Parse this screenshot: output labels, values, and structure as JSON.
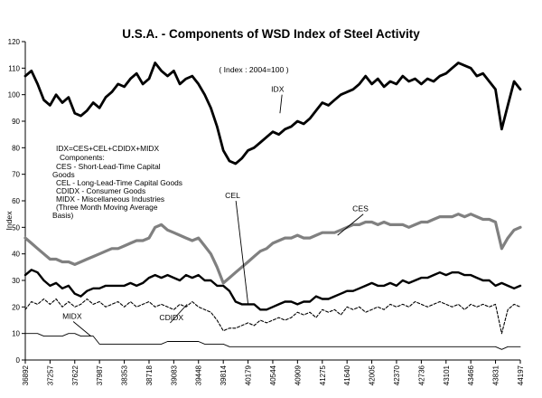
{
  "chart_data": {
    "type": "line",
    "title": "U.S.A. - Components of WSD Index of Steel Activity",
    "subtitle": "( Index : 2004=100 )",
    "ylabel": "Index",
    "ylim": [
      0,
      120
    ],
    "yticks": [
      0,
      10,
      20,
      30,
      40,
      50,
      60,
      70,
      80,
      90,
      100,
      110,
      120
    ],
    "xlim": [
      36892,
      44197
    ],
    "xticks": [
      "36892",
      "37257",
      "37622",
      "37987",
      "38353",
      "38718",
      "39083",
      "39448",
      "39814",
      "40179",
      "40544",
      "40909",
      "41275",
      "41640",
      "42005",
      "42370",
      "42736",
      "43101",
      "43466",
      "43831",
      "44197"
    ],
    "grid": false,
    "notes": [
      "IDX=CES+CEL+CDIDX+MIDX",
      "Components:",
      "CES - Short-Lead-Time Capital",
      "Goods",
      "CEL - Long-Lead-Time Capital Goods",
      "CDIDX - Consumer Goods",
      "MIDX - Miscellaneous Industries",
      "(Three Month Moving Average",
      "Basis)"
    ],
    "series": [
      {
        "name": "IDX",
        "label": "IDX",
        "color": "#000000",
        "width": 2.8,
        "dash": "",
        "x": [
          36892,
          36983,
          37073,
          37165,
          37257,
          37347,
          37438,
          37530,
          37622,
          37712,
          37803,
          37895,
          37987,
          38078,
          38169,
          38261,
          38353,
          38443,
          38534,
          38626,
          38718,
          38808,
          38899,
          38991,
          39083,
          39173,
          39264,
          39356,
          39448,
          39539,
          39630,
          39722,
          39814,
          39904,
          39995,
          40087,
          40179,
          40269,
          40360,
          40452,
          40544,
          40634,
          40725,
          40817,
          40909,
          41000,
          41091,
          41183,
          41275,
          41365,
          41456,
          41548,
          41640,
          41730,
          41821,
          41913,
          42005,
          42095,
          42186,
          42278,
          42370,
          42461,
          42552,
          42644,
          42736,
          42826,
          42917,
          43009,
          43101,
          43191,
          43282,
          43374,
          43466,
          43556,
          43647,
          43739,
          43831,
          43922,
          44013,
          44105,
          44197
        ],
        "y": [
          107,
          109,
          104,
          98,
          96,
          100,
          97,
          99,
          93,
          92,
          94,
          97,
          95,
          99,
          101,
          104,
          103,
          106,
          108,
          104,
          106,
          112,
          109,
          107,
          109,
          104,
          106,
          107,
          104,
          100,
          95,
          88,
          79,
          75,
          74,
          76,
          79,
          80,
          82,
          84,
          86,
          85,
          87,
          88,
          90,
          89,
          91,
          94,
          97,
          96,
          98,
          100,
          101,
          102,
          104,
          107,
          104,
          106,
          103,
          105,
          104,
          107,
          105,
          106,
          104,
          106,
          105,
          107,
          108,
          110,
          112,
          111,
          110,
          107,
          108,
          105,
          102,
          87,
          96,
          105,
          102
        ]
      },
      {
        "name": "CES",
        "label": "CES",
        "color": "#808080",
        "width": 3.2,
        "dash": "",
        "x": [
          36892,
          36983,
          37073,
          37165,
          37257,
          37347,
          37438,
          37530,
          37622,
          37712,
          37803,
          37895,
          37987,
          38078,
          38169,
          38261,
          38353,
          38443,
          38534,
          38626,
          38718,
          38808,
          38899,
          38991,
          39083,
          39173,
          39264,
          39356,
          39448,
          39539,
          39630,
          39722,
          39814,
          39904,
          39995,
          40087,
          40179,
          40269,
          40360,
          40452,
          40544,
          40634,
          40725,
          40817,
          40909,
          41000,
          41091,
          41183,
          41275,
          41365,
          41456,
          41548,
          41640,
          41730,
          41821,
          41913,
          42005,
          42095,
          42186,
          42278,
          42370,
          42461,
          42552,
          42644,
          42736,
          42826,
          42917,
          43009,
          43101,
          43191,
          43282,
          43374,
          43466,
          43556,
          43647,
          43739,
          43831,
          43922,
          44013,
          44105,
          44197
        ],
        "y": [
          46,
          44,
          42,
          40,
          38,
          38,
          37,
          37,
          36,
          37,
          38,
          39,
          40,
          41,
          42,
          42,
          43,
          44,
          45,
          45,
          46,
          50,
          51,
          49,
          48,
          47,
          46,
          45,
          46,
          43,
          40,
          35,
          29,
          31,
          33,
          35,
          37,
          39,
          41,
          42,
          44,
          45,
          46,
          46,
          47,
          46,
          46,
          47,
          48,
          48,
          48,
          49,
          50,
          51,
          51,
          52,
          52,
          51,
          52,
          51,
          51,
          51,
          50,
          51,
          52,
          52,
          53,
          54,
          54,
          54,
          55,
          54,
          55,
          54,
          53,
          53,
          52,
          42,
          46,
          49,
          50
        ]
      },
      {
        "name": "CEL",
        "label": "CEL",
        "color": "#000000",
        "width": 2.4,
        "dash": "",
        "x": [
          36892,
          36983,
          37073,
          37165,
          37257,
          37347,
          37438,
          37530,
          37622,
          37712,
          37803,
          37895,
          37987,
          38078,
          38169,
          38261,
          38353,
          38443,
          38534,
          38626,
          38718,
          38808,
          38899,
          38991,
          39083,
          39173,
          39264,
          39356,
          39448,
          39539,
          39630,
          39722,
          39814,
          39904,
          39995,
          40087,
          40179,
          40269,
          40360,
          40452,
          40544,
          40634,
          40725,
          40817,
          40909,
          41000,
          41091,
          41183,
          41275,
          41365,
          41456,
          41548,
          41640,
          41730,
          41821,
          41913,
          42005,
          42095,
          42186,
          42278,
          42370,
          42461,
          42552,
          42644,
          42736,
          42826,
          42917,
          43009,
          43101,
          43191,
          43282,
          43374,
          43466,
          43556,
          43647,
          43739,
          43831,
          43922,
          44013,
          44105,
          44197
        ],
        "y": [
          32,
          34,
          33,
          30,
          28,
          29,
          27,
          28,
          25,
          24,
          26,
          27,
          27,
          28,
          28,
          28,
          28,
          29,
          28,
          29,
          31,
          32,
          31,
          32,
          31,
          30,
          32,
          31,
          32,
          30,
          30,
          28,
          28,
          26,
          22,
          21,
          21,
          21,
          19,
          19,
          20,
          21,
          22,
          22,
          21,
          22,
          22,
          24,
          23,
          23,
          24,
          25,
          26,
          26,
          27,
          28,
          29,
          28,
          28,
          29,
          28,
          30,
          29,
          30,
          31,
          31,
          32,
          33,
          32,
          33,
          33,
          32,
          32,
          31,
          30,
          30,
          28,
          29,
          28,
          27,
          28
        ]
      },
      {
        "name": "CDIDX",
        "label": "CDIDX",
        "color": "#000000",
        "width": 1.1,
        "dash": "3,2",
        "x": [
          36892,
          36983,
          37073,
          37165,
          37257,
          37347,
          37438,
          37530,
          37622,
          37712,
          37803,
          37895,
          37987,
          38078,
          38169,
          38261,
          38353,
          38443,
          38534,
          38626,
          38718,
          38808,
          38899,
          38991,
          39083,
          39173,
          39264,
          39356,
          39448,
          39539,
          39630,
          39722,
          39814,
          39904,
          39995,
          40087,
          40179,
          40269,
          40360,
          40452,
          40544,
          40634,
          40725,
          40817,
          40909,
          41000,
          41091,
          41183,
          41275,
          41365,
          41456,
          41548,
          41640,
          41730,
          41821,
          41913,
          42005,
          42095,
          42186,
          42278,
          42370,
          42461,
          42552,
          42644,
          42736,
          42826,
          42917,
          43009,
          43101,
          43191,
          43282,
          43374,
          43466,
          43556,
          43647,
          43739,
          43831,
          43922,
          44013,
          44105,
          44197
        ],
        "y": [
          19,
          22,
          21,
          23,
          21,
          23,
          20,
          22,
          20,
          21,
          23,
          21,
          22,
          20,
          21,
          22,
          20,
          22,
          20,
          21,
          22,
          20,
          21,
          20,
          19,
          21,
          20,
          22,
          20,
          19,
          18,
          15,
          11,
          12,
          12,
          13,
          14,
          13,
          15,
          14,
          15,
          16,
          15,
          16,
          18,
          17,
          18,
          16,
          19,
          18,
          19,
          17,
          20,
          19,
          20,
          18,
          19,
          20,
          19,
          21,
          20,
          21,
          20,
          22,
          21,
          20,
          21,
          22,
          21,
          20,
          21,
          19,
          21,
          20,
          21,
          20,
          21,
          10,
          19,
          21,
          20
        ]
      },
      {
        "name": "MIDX",
        "label": "MIDX",
        "color": "#000000",
        "width": 0.9,
        "dash": "",
        "x": [
          36892,
          36983,
          37073,
          37165,
          37257,
          37347,
          37438,
          37530,
          37622,
          37712,
          37803,
          37895,
          37987,
          38078,
          38169,
          38261,
          38353,
          38443,
          38534,
          38626,
          38718,
          38808,
          38899,
          38991,
          39083,
          39173,
          39264,
          39356,
          39448,
          39539,
          39630,
          39722,
          39814,
          39904,
          39995,
          40087,
          40179,
          40269,
          40360,
          40452,
          40544,
          40634,
          40725,
          40817,
          40909,
          41000,
          41091,
          41183,
          41275,
          41365,
          41456,
          41548,
          41640,
          41730,
          41821,
          41913,
          42005,
          42095,
          42186,
          42278,
          42370,
          42461,
          42552,
          42644,
          42736,
          42826,
          42917,
          43009,
          43101,
          43191,
          43282,
          43374,
          43466,
          43556,
          43647,
          43739,
          43831,
          43922,
          44013,
          44105,
          44197
        ],
        "y": [
          10,
          10,
          10,
          9,
          9,
          9,
          9,
          10,
          10,
          9,
          9,
          9,
          6,
          6,
          6,
          6,
          6,
          6,
          6,
          6,
          6,
          6,
          6,
          7,
          7,
          7,
          7,
          7,
          7,
          6,
          6,
          6,
          6,
          5,
          5,
          5,
          5,
          5,
          5,
          5,
          5,
          5,
          5,
          5,
          5,
          5,
          5,
          5,
          5,
          5,
          5,
          5,
          5,
          5,
          5,
          5,
          5,
          5,
          5,
          5,
          5,
          5,
          5,
          5,
          5,
          5,
          5,
          5,
          5,
          5,
          5,
          5,
          5,
          5,
          5,
          5,
          5,
          4,
          5,
          5,
          5
        ]
      }
    ],
    "annotations": [
      {
        "text": "IDX",
        "key": "IDX",
        "at": [
          40600,
          101
        ],
        "tip": [
          40650,
          93
        ]
      },
      {
        "text": "CES",
        "key": "CES",
        "at": [
          41800,
          56
        ],
        "tip": [
          41500,
          47
        ]
      },
      {
        "text": "CEL",
        "key": "CEL",
        "at": [
          39920,
          61
        ],
        "tip": [
          40180,
          21
        ]
      },
      {
        "text": "CDIDX",
        "key": "CDIDX",
        "at": [
          38950,
          15
        ],
        "tip": [
          39280,
          21
        ]
      },
      {
        "text": "MIDX",
        "key": "MIDX",
        "at": [
          37520,
          15.5
        ],
        "tip": [
          37860,
          9
        ]
      }
    ]
  }
}
